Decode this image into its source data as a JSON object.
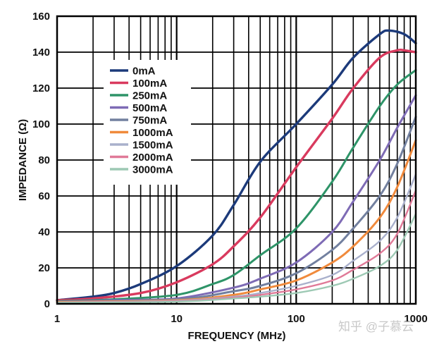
{
  "chart_data": {
    "type": "line",
    "title": "",
    "xlabel": "FREQUENCY (MHz)",
    "ylabel": "IMPEDANCE (Ω)",
    "xscale": "log",
    "xlim": [
      1,
      1000
    ],
    "ylim": [
      0,
      160
    ],
    "grid": true,
    "legend_placement": "top-left",
    "x_ticks": [
      1,
      10,
      100,
      1000
    ],
    "x_tick_labels": [
      "1",
      "10",
      "100",
      "1000"
    ],
    "y_ticks": [
      0,
      20,
      40,
      60,
      80,
      100,
      120,
      140,
      160
    ],
    "y_tick_labels": [
      "0",
      "20",
      "40",
      "60",
      "80",
      "100",
      "120",
      "140",
      "160"
    ],
    "series": [
      {
        "name": "0mA",
        "color": "#1c3a7a",
        "x": [
          1,
          2,
          3,
          5,
          10,
          20,
          30,
          50,
          100,
          200,
          300,
          500,
          600,
          800,
          1000
        ],
        "y": [
          2,
          4,
          6,
          11,
          21,
          38,
          55,
          79,
          100,
          122,
          137,
          150,
          152,
          150,
          145
        ]
      },
      {
        "name": "100mA",
        "color": "#d93a5e",
        "x": [
          1,
          2,
          5,
          10,
          20,
          30,
          50,
          100,
          200,
          300,
          500,
          700,
          800,
          1000
        ],
        "y": [
          2,
          3,
          6,
          12,
          22,
          32,
          48,
          76,
          103,
          120,
          137,
          141,
          141,
          140
        ]
      },
      {
        "name": "250mA",
        "color": "#2e9468",
        "x": [
          1,
          3,
          10,
          20,
          30,
          50,
          100,
          200,
          300,
          500,
          700,
          1000
        ],
        "y": [
          1.5,
          2.5,
          5,
          11,
          16,
          27,
          42,
          68,
          87,
          110,
          122,
          130
        ]
      },
      {
        "name": "500mA",
        "color": "#7e6bb5",
        "x": [
          1,
          3,
          10,
          30,
          50,
          100,
          200,
          300,
          500,
          700,
          1000
        ],
        "y": [
          1.2,
          2,
          3,
          9,
          14,
          23,
          40,
          57,
          80,
          98,
          116
        ]
      },
      {
        "name": "750mA",
        "color": "#72809f",
        "x": [
          1,
          10,
          30,
          50,
          100,
          200,
          300,
          500,
          700,
          1000
        ],
        "y": [
          1,
          2.5,
          7,
          10,
          17,
          30,
          42,
          60,
          78,
          104
        ]
      },
      {
        "name": "1000mA",
        "color": "#f08a3c",
        "x": [
          1,
          10,
          30,
          50,
          100,
          200,
          300,
          500,
          700,
          1000
        ],
        "y": [
          1,
          2,
          5,
          8,
          13,
          23,
          32,
          48,
          65,
          91
        ]
      },
      {
        "name": "1500mA",
        "color": "#a9b0cc",
        "x": [
          1,
          10,
          30,
          50,
          100,
          200,
          300,
          500,
          700,
          1000
        ],
        "y": [
          0.8,
          1.8,
          4,
          6,
          10,
          16,
          24,
          35,
          48,
          72
        ]
      },
      {
        "name": "2000mA",
        "color": "#e07a98",
        "x": [
          1,
          10,
          30,
          50,
          100,
          200,
          300,
          500,
          700,
          1000
        ],
        "y": [
          0.7,
          1.5,
          3.5,
          5,
          8,
          13,
          19,
          28,
          39,
          63
        ]
      },
      {
        "name": "3000mA",
        "color": "#9dc9b4",
        "x": [
          1,
          10,
          30,
          50,
          100,
          200,
          300,
          500,
          700,
          1000
        ],
        "y": [
          0.6,
          1.2,
          3,
          4,
          6,
          10,
          14,
          21,
          30,
          50
        ]
      }
    ]
  },
  "watermark": "知乎 @子慕云"
}
